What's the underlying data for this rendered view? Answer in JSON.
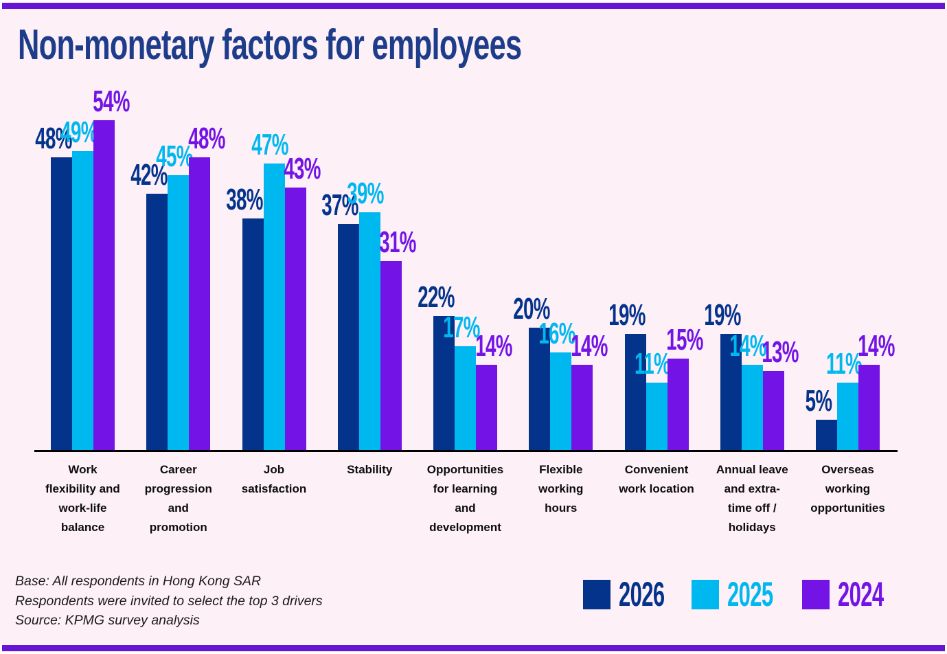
{
  "title": "Non-monetary factors for employees",
  "colors": {
    "background": "#fdf0f7",
    "border_accent": "#6615d4",
    "title_text": "#1d3c8a",
    "axis": "#000000",
    "category_text": "#0d0d0d",
    "notes_text": "#1a1a1a"
  },
  "chart_data": {
    "type": "bar",
    "title": "Non-monetary factors for employees",
    "value_suffix": "%",
    "ylim": [
      0,
      60
    ],
    "grid": false,
    "data_labels": true,
    "legend_position": "bottom-right",
    "categories": [
      [
        "Work",
        "flexibility and",
        "work-life",
        "balance"
      ],
      [
        "Career",
        "progression",
        "and",
        "promotion"
      ],
      [
        "Job",
        "satisfaction"
      ],
      [
        "Stability"
      ],
      [
        "Opportunities",
        "for learning",
        "and",
        "development"
      ],
      [
        "Flexible",
        "working",
        "hours"
      ],
      [
        "Convenient",
        "work location"
      ],
      [
        "Annual leave",
        "and extra-",
        "time off /",
        "holidays"
      ],
      [
        "Overseas",
        "working",
        "opportunities"
      ]
    ],
    "series": [
      {
        "name": "2026",
        "color": "#04338b",
        "values": [
          48,
          42,
          38,
          37,
          22,
          20,
          19,
          19,
          5
        ]
      },
      {
        "name": "2025",
        "color": "#00b8f0",
        "values": [
          49,
          45,
          47,
          39,
          17,
          16,
          11,
          14,
          11
        ]
      },
      {
        "name": "2024",
        "color": "#7313e6",
        "values": [
          54,
          48,
          43,
          31,
          14,
          14,
          15,
          13,
          14
        ]
      }
    ]
  },
  "footer": {
    "notes": [
      "Base: All respondents in Hong Kong SAR",
      "Respondents were invited to select the top 3 drivers",
      "Source: KPMG survey analysis"
    ]
  }
}
